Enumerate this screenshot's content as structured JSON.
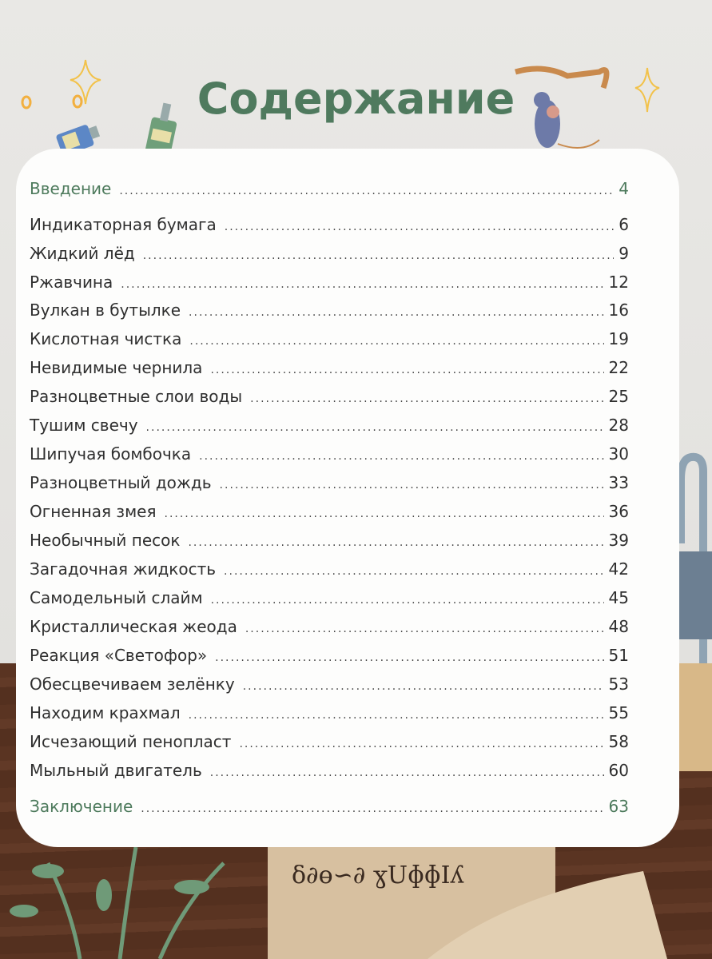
{
  "title": "Содержание",
  "entries": [
    {
      "label": "Введение",
      "page": "4",
      "accent": true
    },
    {
      "label": "Индикаторная бумага",
      "page": "6"
    },
    {
      "label": "Жидкий лёд",
      "page": "9"
    },
    {
      "label": "Ржавчина",
      "page": "12"
    },
    {
      "label": "Вулкан в бутылке",
      "page": "16"
    },
    {
      "label": "Кислотная чистка",
      "page": "19"
    },
    {
      "label": "Невидимые чернила",
      "page": "22"
    },
    {
      "label": "Разноцветные слои воды",
      "page": "25"
    },
    {
      "label": "Тушим свечу",
      "page": "28"
    },
    {
      "label": "Шипучая бомбочка",
      "page": "30"
    },
    {
      "label": "Разноцветный дождь",
      "page": "33"
    },
    {
      "label": "Огненная змея",
      "page": "36"
    },
    {
      "label": "Необычный песок",
      "page": "39"
    },
    {
      "label": "Загадочная жидкость",
      "page": "42"
    },
    {
      "label": "Самодельный слайм",
      "page": "45"
    },
    {
      "label": "Кристаллическая жеода",
      "page": "48"
    },
    {
      "label": "Реакция «Светофор»",
      "page": "51"
    },
    {
      "label": "Обесцвечиваем зелёнку",
      "page": "53"
    },
    {
      "label": "Находим крахмал",
      "page": "55"
    },
    {
      "label": "Исчезающий пенопласт",
      "page": "58"
    },
    {
      "label": "Мыльный двигатель",
      "page": "60"
    },
    {
      "label": "Заключение",
      "page": "63",
      "accent": true
    }
  ],
  "colors": {
    "accent": "#4d7a5c",
    "text": "#2f2f2f",
    "wood": "#5a3422",
    "wall": "#e7e6e3"
  }
}
